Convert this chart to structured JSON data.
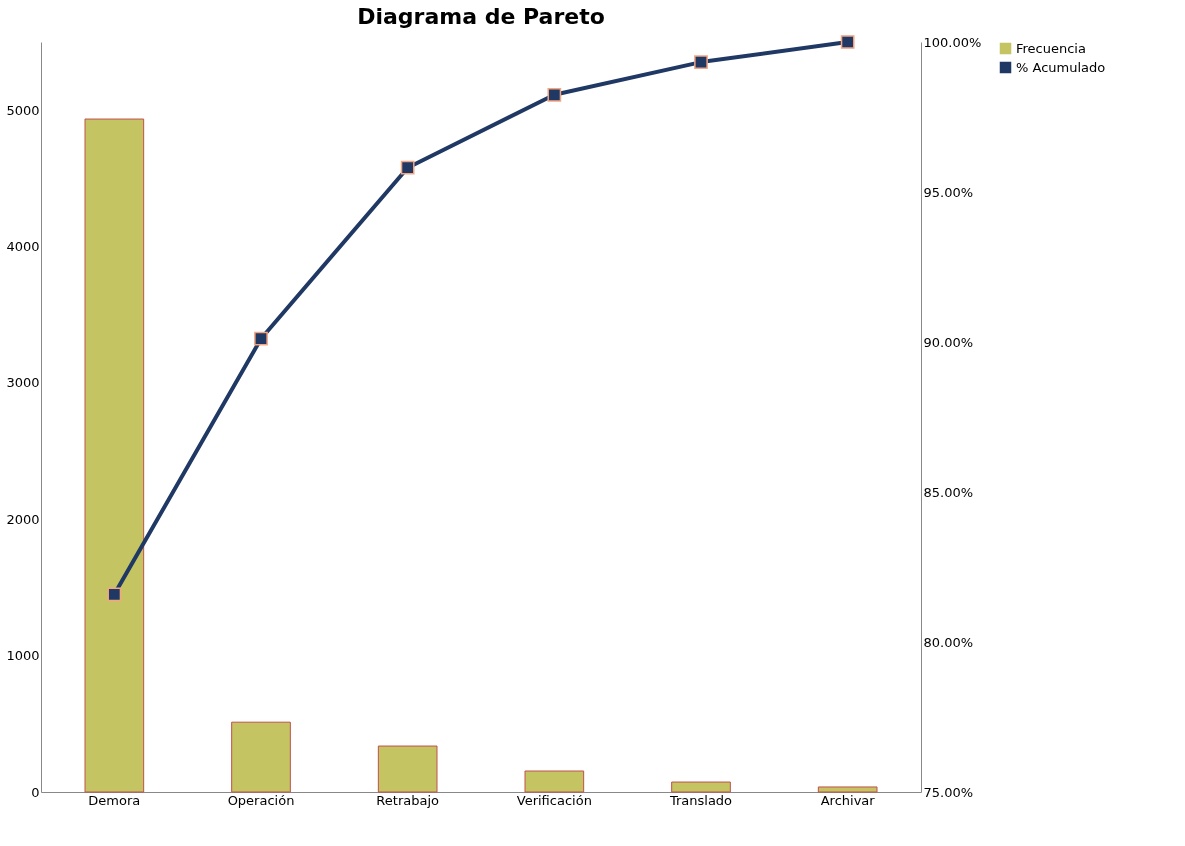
{
  "chart_data": {
    "type": "bar",
    "title": "Diagrama de Pareto",
    "categories": [
      "Demora",
      "Operación",
      "Retrabajo",
      "Verificación",
      "Translado",
      "Archivar"
    ],
    "series": [
      {
        "name": "Frecuencia",
        "color": "#c4c462",
        "values": [
          4935,
          512,
          337,
          154,
          73,
          37
        ]
      },
      {
        "name": "% Acumulado",
        "type": "line",
        "axis": "y2",
        "color": "#1f3864",
        "marker": "square",
        "values": [
          81.59,
          90.11,
          95.81,
          98.24,
          99.33,
          100.0
        ]
      }
    ],
    "ylim": [
      0,
      5500
    ],
    "yticks": [
      0,
      1000,
      2000,
      3000,
      4000,
      5000
    ],
    "y2lim": [
      75,
      100
    ],
    "y2ticks": [
      {
        "value": 75,
        "label": "75.00%"
      },
      {
        "value": 80,
        "label": "80.00%"
      },
      {
        "value": 85,
        "label": "85.00%"
      },
      {
        "value": 90,
        "label": "90.00%"
      },
      {
        "value": 95,
        "label": "95.00%"
      },
      {
        "value": 100,
        "label": "100.00%"
      }
    ],
    "grid": false,
    "legend": "right"
  }
}
